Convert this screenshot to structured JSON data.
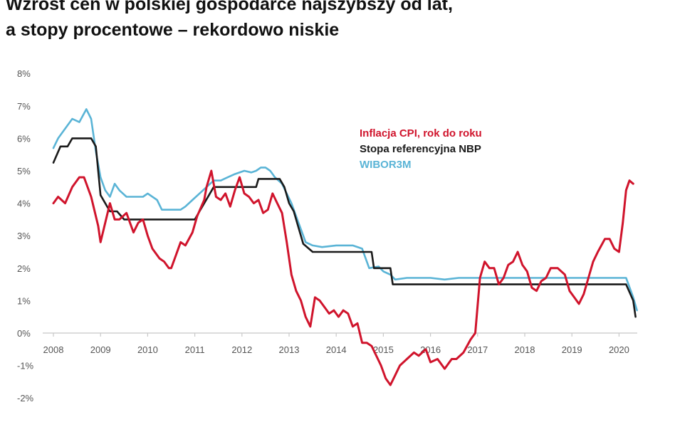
{
  "title_lines": [
    "Wzrost cen w polskiej gospodarce najszybszy od lat,",
    "a stopy procentowe – rekordowo niskie"
  ],
  "colors": {
    "cpi": "#d0142c",
    "nbp": "#1a1a1a",
    "wibor": "#5ab4d6",
    "axis": "#c8c8c8",
    "ticks": "#555555"
  },
  "chart_data": {
    "type": "line",
    "xlim": [
      2008,
      2020.5
    ],
    "ylim": [
      -2,
      8
    ],
    "y_ticks": [
      -2,
      -1,
      0,
      1,
      2,
      3,
      4,
      5,
      6,
      7,
      8
    ],
    "y_tick_labels": [
      "-2%",
      "-1%",
      "0%",
      "1%",
      "2%",
      "3%",
      "4%",
      "5%",
      "6%",
      "7%",
      "8%"
    ],
    "x_ticks": [
      2008,
      2009,
      2010,
      2011,
      2012,
      2013,
      2014,
      2015,
      2016,
      2017,
      2018,
      2019,
      2020
    ],
    "x_tick_labels": [
      "2008",
      "2009",
      "2010",
      "2011",
      "2012",
      "2013",
      "2014",
      "2015",
      "2016",
      "2017",
      "2018",
      "2019",
      "2020"
    ],
    "legend_placement": "center-right",
    "series": [
      {
        "name": "Inflacja CPI, rok do roku",
        "color_key": "cpi",
        "points": [
          [
            2008.0,
            4.0
          ],
          [
            2008.1,
            4.2
          ],
          [
            2008.25,
            4.0
          ],
          [
            2008.4,
            4.5
          ],
          [
            2008.55,
            4.8
          ],
          [
            2008.65,
            4.8
          ],
          [
            2008.8,
            4.2
          ],
          [
            2008.95,
            3.3
          ],
          [
            2009.0,
            2.8
          ],
          [
            2009.1,
            3.4
          ],
          [
            2009.2,
            4.0
          ],
          [
            2009.3,
            3.5
          ],
          [
            2009.4,
            3.5
          ],
          [
            2009.55,
            3.7
          ],
          [
            2009.7,
            3.1
          ],
          [
            2009.8,
            3.4
          ],
          [
            2009.9,
            3.5
          ],
          [
            2010.0,
            3.0
          ],
          [
            2010.1,
            2.6
          ],
          [
            2010.25,
            2.3
          ],
          [
            2010.35,
            2.2
          ],
          [
            2010.45,
            2.0
          ],
          [
            2010.5,
            2.0
          ],
          [
            2010.6,
            2.4
          ],
          [
            2010.7,
            2.8
          ],
          [
            2010.8,
            2.7
          ],
          [
            2010.95,
            3.1
          ],
          [
            2011.05,
            3.6
          ],
          [
            2011.2,
            4.1
          ],
          [
            2011.25,
            4.5
          ],
          [
            2011.35,
            5.0
          ],
          [
            2011.45,
            4.2
          ],
          [
            2011.55,
            4.1
          ],
          [
            2011.65,
            4.3
          ],
          [
            2011.75,
            3.9
          ],
          [
            2011.85,
            4.4
          ],
          [
            2011.95,
            4.8
          ],
          [
            2012.05,
            4.3
          ],
          [
            2012.15,
            4.2
          ],
          [
            2012.25,
            4.0
          ],
          [
            2012.35,
            4.1
          ],
          [
            2012.45,
            3.7
          ],
          [
            2012.55,
            3.8
          ],
          [
            2012.65,
            4.3
          ],
          [
            2012.75,
            4.0
          ],
          [
            2012.85,
            3.7
          ],
          [
            2012.95,
            2.8
          ],
          [
            2013.05,
            1.8
          ],
          [
            2013.15,
            1.3
          ],
          [
            2013.25,
            1.0
          ],
          [
            2013.35,
            0.5
          ],
          [
            2013.45,
            0.2
          ],
          [
            2013.55,
            1.1
          ],
          [
            2013.65,
            1.0
          ],
          [
            2013.75,
            0.8
          ],
          [
            2013.85,
            0.6
          ],
          [
            2013.95,
            0.7
          ],
          [
            2014.05,
            0.5
          ],
          [
            2014.15,
            0.7
          ],
          [
            2014.25,
            0.6
          ],
          [
            2014.35,
            0.2
          ],
          [
            2014.45,
            0.3
          ],
          [
            2014.55,
            -0.3
          ],
          [
            2014.65,
            -0.3
          ],
          [
            2014.75,
            -0.4
          ],
          [
            2014.85,
            -0.7
          ],
          [
            2014.95,
            -1.0
          ],
          [
            2015.05,
            -1.4
          ],
          [
            2015.15,
            -1.6
          ],
          [
            2015.25,
            -1.3
          ],
          [
            2015.35,
            -1.0
          ],
          [
            2015.5,
            -0.8
          ],
          [
            2015.65,
            -0.6
          ],
          [
            2015.75,
            -0.7
          ],
          [
            2015.9,
            -0.5
          ],
          [
            2016.0,
            -0.9
          ],
          [
            2016.15,
            -0.8
          ],
          [
            2016.3,
            -1.1
          ],
          [
            2016.45,
            -0.8
          ],
          [
            2016.55,
            -0.8
          ],
          [
            2016.7,
            -0.6
          ],
          [
            2016.85,
            -0.2
          ],
          [
            2016.95,
            0.0
          ],
          [
            2017.05,
            1.7
          ],
          [
            2017.15,
            2.2
          ],
          [
            2017.25,
            2.0
          ],
          [
            2017.35,
            2.0
          ],
          [
            2017.45,
            1.5
          ],
          [
            2017.55,
            1.7
          ],
          [
            2017.65,
            2.1
          ],
          [
            2017.75,
            2.2
          ],
          [
            2017.85,
            2.5
          ],
          [
            2017.95,
            2.1
          ],
          [
            2018.05,
            1.9
          ],
          [
            2018.15,
            1.4
          ],
          [
            2018.25,
            1.3
          ],
          [
            2018.35,
            1.6
          ],
          [
            2018.45,
            1.7
          ],
          [
            2018.55,
            2.0
          ],
          [
            2018.7,
            2.0
          ],
          [
            2018.85,
            1.8
          ],
          [
            2018.95,
            1.3
          ],
          [
            2019.05,
            1.1
          ],
          [
            2019.15,
            0.9
          ],
          [
            2019.25,
            1.2
          ],
          [
            2019.35,
            1.7
          ],
          [
            2019.45,
            2.2
          ],
          [
            2019.55,
            2.5
          ],
          [
            2019.7,
            2.9
          ],
          [
            2019.8,
            2.9
          ],
          [
            2019.9,
            2.6
          ],
          [
            2020.0,
            2.5
          ],
          [
            2020.08,
            3.4
          ],
          [
            2020.15,
            4.4
          ],
          [
            2020.22,
            4.7
          ],
          [
            2020.3,
            4.6
          ]
        ]
      },
      {
        "name": "Stopa referencyjna NBP",
        "color_key": "nbp",
        "points": [
          [
            2008.0,
            5.25
          ],
          [
            2008.15,
            5.75
          ],
          [
            2008.3,
            5.75
          ],
          [
            2008.4,
            6.0
          ],
          [
            2008.8,
            6.0
          ],
          [
            2008.9,
            5.75
          ],
          [
            2009.0,
            4.25
          ],
          [
            2009.2,
            3.75
          ],
          [
            2009.35,
            3.75
          ],
          [
            2009.5,
            3.5
          ],
          [
            2011.0,
            3.5
          ],
          [
            2011.1,
            3.75
          ],
          [
            2011.3,
            4.25
          ],
          [
            2011.4,
            4.5
          ],
          [
            2012.3,
            4.5
          ],
          [
            2012.35,
            4.75
          ],
          [
            2012.8,
            4.75
          ],
          [
            2012.9,
            4.5
          ],
          [
            2013.0,
            4.0
          ],
          [
            2013.1,
            3.75
          ],
          [
            2013.2,
            3.25
          ],
          [
            2013.3,
            2.75
          ],
          [
            2013.5,
            2.5
          ],
          [
            2014.75,
            2.5
          ],
          [
            2014.8,
            2.0
          ],
          [
            2015.15,
            2.0
          ],
          [
            2015.2,
            1.5
          ],
          [
            2020.15,
            1.5
          ],
          [
            2020.3,
            1.0
          ],
          [
            2020.35,
            0.5
          ]
        ]
      },
      {
        "name": "WIBOR3M",
        "color_key": "wibor",
        "points": [
          [
            2008.0,
            5.7
          ],
          [
            2008.1,
            6.0
          ],
          [
            2008.25,
            6.3
          ],
          [
            2008.4,
            6.6
          ],
          [
            2008.55,
            6.5
          ],
          [
            2008.7,
            6.9
          ],
          [
            2008.8,
            6.6
          ],
          [
            2008.9,
            5.6
          ],
          [
            2009.0,
            4.8
          ],
          [
            2009.1,
            4.4
          ],
          [
            2009.2,
            4.2
          ],
          [
            2009.3,
            4.6
          ],
          [
            2009.4,
            4.4
          ],
          [
            2009.55,
            4.2
          ],
          [
            2009.75,
            4.2
          ],
          [
            2009.9,
            4.2
          ],
          [
            2010.0,
            4.3
          ],
          [
            2010.2,
            4.1
          ],
          [
            2010.3,
            3.8
          ],
          [
            2010.5,
            3.8
          ],
          [
            2010.7,
            3.8
          ],
          [
            2010.8,
            3.9
          ],
          [
            2010.95,
            4.1
          ],
          [
            2011.1,
            4.3
          ],
          [
            2011.25,
            4.5
          ],
          [
            2011.4,
            4.7
          ],
          [
            2011.55,
            4.7
          ],
          [
            2011.7,
            4.8
          ],
          [
            2011.85,
            4.9
          ],
          [
            2012.05,
            5.0
          ],
          [
            2012.2,
            4.95
          ],
          [
            2012.3,
            5.0
          ],
          [
            2012.4,
            5.1
          ],
          [
            2012.5,
            5.1
          ],
          [
            2012.6,
            5.0
          ],
          [
            2012.7,
            4.8
          ],
          [
            2012.85,
            4.6
          ],
          [
            2012.95,
            4.3
          ],
          [
            2013.05,
            4.0
          ],
          [
            2013.15,
            3.6
          ],
          [
            2013.25,
            3.2
          ],
          [
            2013.35,
            2.8
          ],
          [
            2013.5,
            2.7
          ],
          [
            2013.7,
            2.65
          ],
          [
            2014.0,
            2.7
          ],
          [
            2014.35,
            2.7
          ],
          [
            2014.55,
            2.6
          ],
          [
            2014.7,
            2.0
          ],
          [
            2014.9,
            2.05
          ],
          [
            2015.0,
            1.9
          ],
          [
            2015.15,
            1.8
          ],
          [
            2015.25,
            1.65
          ],
          [
            2015.5,
            1.7
          ],
          [
            2015.8,
            1.7
          ],
          [
            2016.0,
            1.7
          ],
          [
            2016.3,
            1.65
          ],
          [
            2016.6,
            1.7
          ],
          [
            2017.0,
            1.7
          ],
          [
            2017.5,
            1.7
          ],
          [
            2018.0,
            1.7
          ],
          [
            2018.5,
            1.7
          ],
          [
            2019.0,
            1.7
          ],
          [
            2019.5,
            1.7
          ],
          [
            2020.15,
            1.7
          ],
          [
            2020.3,
            1.1
          ],
          [
            2020.38,
            0.7
          ]
        ]
      }
    ]
  }
}
